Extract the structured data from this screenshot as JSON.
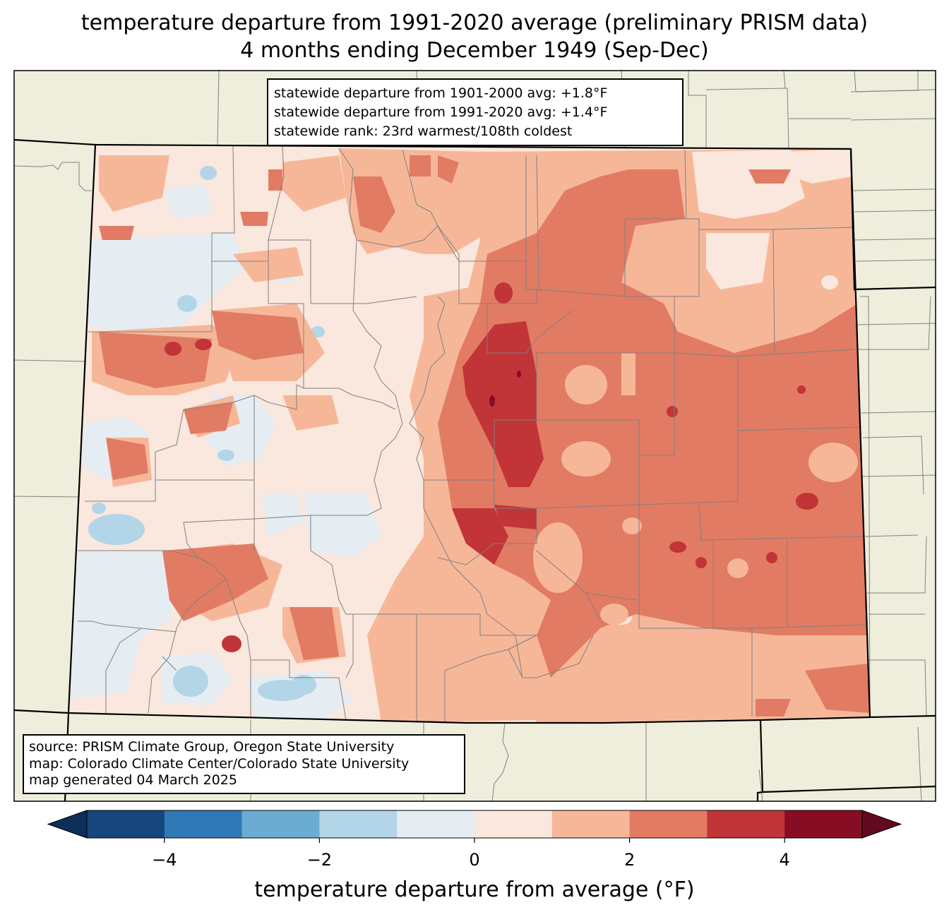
{
  "title": {
    "line1": "temperature departure from 1991-2020 average (preliminary PRISM data)",
    "line2": "4 months ending December 1949 (Sep-Dec)"
  },
  "stats": {
    "line1": "statewide departure from 1901-2000 avg: +1.8°F",
    "line2": "statewide departure from 1991-2020 avg: +1.4°F",
    "line3": "statewide rank: 23rd warmest/108th coldest"
  },
  "source": {
    "line1": "source: PRISM Climate Group, Oregon State University",
    "line2": "map: Colorado Climate Center/Colorado State University",
    "line3": "map generated 04 March 2025"
  },
  "colorbar": {
    "label": "temperature departure from average (°F)",
    "bins": [
      -5,
      -4,
      -3,
      -2,
      -1,
      0,
      1,
      2,
      3,
      4,
      5
    ],
    "colors": [
      "#16467d",
      "#2f7ab6",
      "#6aadd1",
      "#b2d5e7",
      "#e5edf3",
      "#fae7de",
      "#f6b799",
      "#e27b63",
      "#c13437",
      "#870d24"
    ],
    "under_color": "#0c2e57",
    "over_color": "#620a1d",
    "ticks": [
      {
        "value": -4,
        "label": "−4"
      },
      {
        "value": -2,
        "label": "−2"
      },
      {
        "value": 0,
        "label": "0"
      },
      {
        "value": 2,
        "label": "2"
      },
      {
        "value": 4,
        "label": "4"
      }
    ]
  },
  "map_colors": {
    "land": "#efeedc",
    "state_border": "#000000",
    "county_border": "#808080"
  }
}
